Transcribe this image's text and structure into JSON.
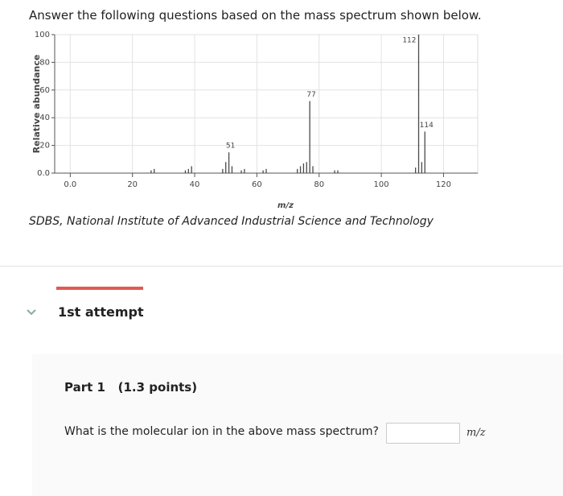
{
  "header": {
    "instruction": "Answer the following questions based on the mass spectrum shown below."
  },
  "chart_data": {
    "type": "stem",
    "xlabel": "m/z",
    "ylabel": "Relative abundance",
    "x": [
      26,
      27,
      37,
      38,
      39,
      49,
      50,
      51,
      52,
      55,
      56,
      62,
      63,
      73,
      74,
      75,
      76,
      77,
      78,
      85,
      86,
      111,
      112,
      113,
      114
    ],
    "values": [
      2,
      3,
      2,
      3,
      5,
      3,
      8,
      15,
      5,
      2,
      3,
      2,
      3,
      3,
      5,
      7,
      8,
      52,
      5,
      2,
      2,
      4,
      100,
      8,
      30
    ],
    "color": "#4a4a4a",
    "xlim": [
      -5,
      131
    ],
    "ylim": [
      0,
      100
    ],
    "xticks": [
      {
        "value": 0,
        "label": "0.0"
      },
      20,
      40,
      60,
      80,
      100,
      120
    ],
    "yticks": [
      {
        "value": 0,
        "label": "0.0"
      },
      20,
      40,
      60,
      80,
      100
    ],
    "grid": true,
    "annotations": [
      {
        "text": "51",
        "x": 51,
        "y": 15
      },
      {
        "text": "77",
        "x": 77,
        "y": 52
      },
      {
        "text": "112",
        "x": 112,
        "y": 100
      },
      {
        "text": "114",
        "x": 114,
        "y": 30
      }
    ]
  },
  "credit": "SDBS, National Institute of Advanced Industrial Science and Technology",
  "attempt": {
    "label": "1st attempt"
  },
  "part": {
    "title": "Part 1",
    "points": "(1.3 points)"
  },
  "question": {
    "text": "What is the molecular ion in the above mass spectrum?",
    "unit": "m/z"
  }
}
